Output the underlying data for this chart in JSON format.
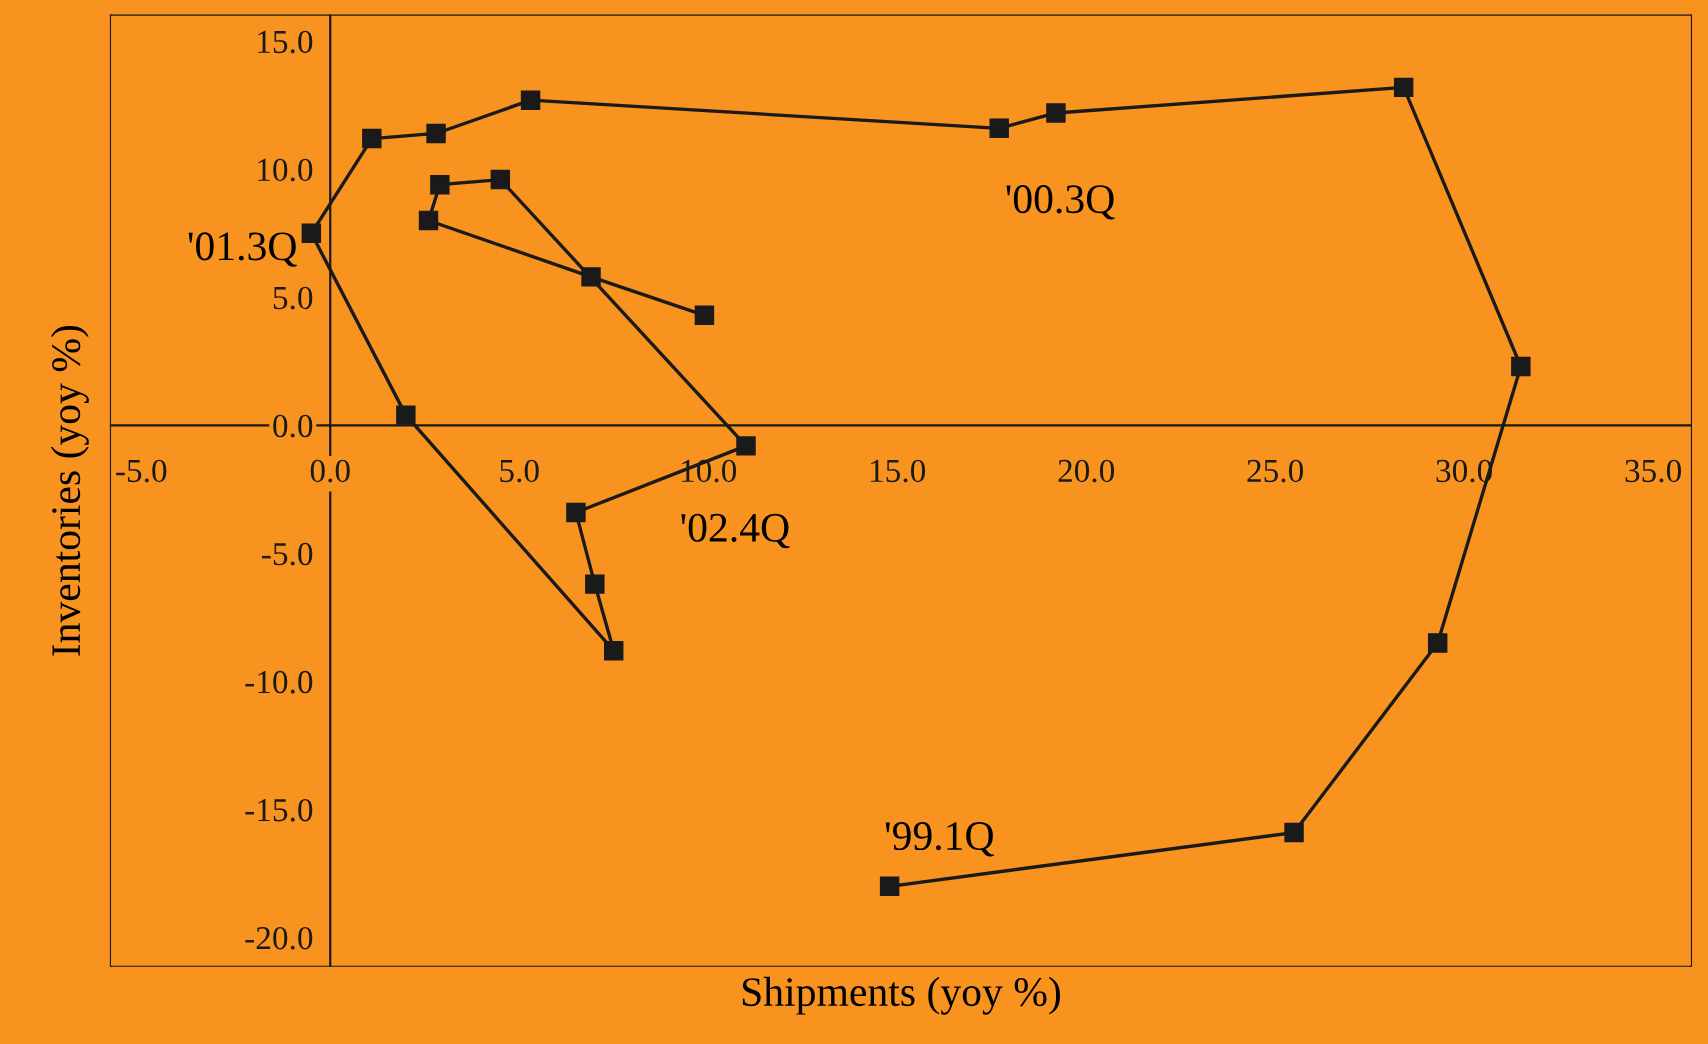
{
  "chart_data": {
    "type": "line",
    "xlabel": "Shipments (yoy %)",
    "ylabel": "Inventories (yoy %)",
    "x": [
      14.8,
      25.5,
      29.3,
      31.5,
      28.4,
      19.2,
      17.7,
      5.3,
      2.8,
      1.1,
      -0.5,
      2.0,
      7.5,
      7.0,
      6.5,
      11.0,
      4.5,
      2.9,
      2.6,
      6.9,
      9.9
    ],
    "series": [
      {
        "color": "#1a1a1a",
        "values": [
          -18.0,
          -15.9,
          -8.5,
          2.3,
          13.2,
          12.2,
          11.6,
          12.7,
          11.4,
          11.2,
          7.5,
          0.4,
          -8.8,
          -6.2,
          -3.4,
          -0.8,
          9.6,
          9.4,
          8.0,
          5.8,
          4.3
        ]
      }
    ],
    "marker": "square",
    "line_style": "solid",
    "grid": false,
    "legend": false,
    "xlim": [
      -5.8,
      36.0
    ],
    "ylim": [
      -21.1,
      16.0
    ],
    "xticks": [
      {
        "value": -5,
        "label": "-5.0"
      },
      {
        "value": 0,
        "label": "0.0"
      },
      {
        "value": 5,
        "label": "5.0"
      },
      {
        "value": 10,
        "label": "10.0"
      },
      {
        "value": 15,
        "label": "15.0"
      },
      {
        "value": 20,
        "label": "20.0"
      },
      {
        "value": 25,
        "label": "25.0"
      },
      {
        "value": 30,
        "label": "30.0"
      },
      {
        "value": 35,
        "label": "35.0"
      }
    ],
    "yticks": [
      {
        "value": -20,
        "label": "-20.0"
      },
      {
        "value": -15,
        "label": "-15.0"
      },
      {
        "value": -10,
        "label": "-10.0"
      },
      {
        "value": -5,
        "label": "-5.0"
      },
      {
        "value": 0,
        "label": "0.0"
      },
      {
        "value": 5,
        "label": "5.0"
      },
      {
        "value": 10,
        "label": "10.0"
      },
      {
        "value": 15,
        "label": "15.0"
      }
    ],
    "annotations": [
      {
        "text": "'99.1Q",
        "x": 14.8,
        "y": -18.0
      },
      {
        "text": "'00.3Q",
        "x": 17.7,
        "y": 11.6
      },
      {
        "text": "'01.3Q",
        "x": -0.5,
        "y": 7.5
      },
      {
        "text": "'02.4Q",
        "x": 11.0,
        "y": -0.8
      }
    ]
  }
}
